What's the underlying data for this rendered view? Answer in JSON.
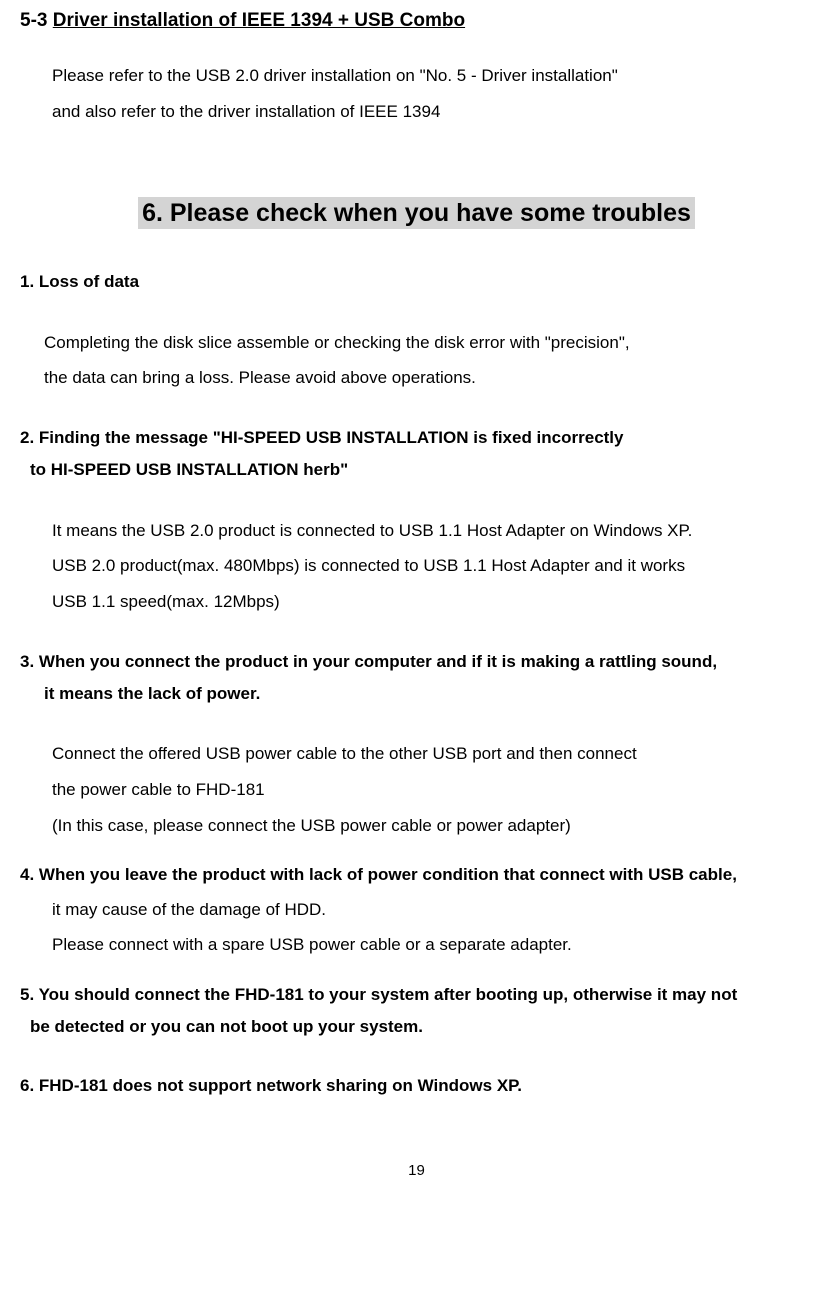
{
  "section53": {
    "title_prefix": "5-3 ",
    "title_underline": "Driver installation of IEEE 1394 + USB Combo ",
    "line1": "Please refer to the USB 2.0 driver installation on \"No. 5 - Driver installation\"",
    "line2": "and also refer to the driver installation of IEEE 1394"
  },
  "section6": {
    "heading": "6. Please check when you have some troubles",
    "item1": {
      "title": "1. Loss of data",
      "body1": "Completing the disk slice assemble or checking the disk error with \"precision\",",
      "body2": " the data can bring a loss. Please avoid above operations."
    },
    "item2": {
      "title1": "2. Finding the message \"HI-SPEED USB INSTALLATION is fixed incorrectly",
      "title2": " to HI-SPEED USB INSTALLATION herb\"",
      "body1": "It means the USB 2.0 product is connected to USB 1.1 Host Adapter on Windows XP.",
      "body2": "USB 2.0 product(max. 480Mbps) is connected to USB 1.1 Host Adapter and it works",
      "body3": "USB 1.1 speed(max. 12Mbps)"
    },
    "item3": {
      "title1": "3. When you connect the product in your computer and if it is making a rattling sound,",
      "title2": "   it means the lack of power.",
      "body1": "Connect the offered USB power cable to the other USB port and then connect",
      "body2": "the power cable to FHD-181",
      "body3": "(In this case, please connect the USB power cable or power adapter)"
    },
    "item4": {
      "title": "4. When you leave the product with lack of power condition that connect with USB cable,",
      "body1": "   it may cause of the damage of HDD.",
      "body2": "Please connect with a spare USB power cable or a separate adapter."
    },
    "item5": {
      "title1": "5. You should connect the FHD-181 to your system after booting up, otherwise it may not",
      "title2": "  be detected or you can not boot up your system."
    },
    "item6": {
      "title": "6. FHD-181 does not support network sharing on Windows XP."
    }
  },
  "page_number": "19",
  "colors": {
    "background": "#ffffff",
    "text": "#000000",
    "highlight": "#d4d4d4"
  },
  "typography": {
    "section_title_size": 19,
    "heading_size": 25,
    "body_size": 17,
    "page_number_size": 15
  }
}
